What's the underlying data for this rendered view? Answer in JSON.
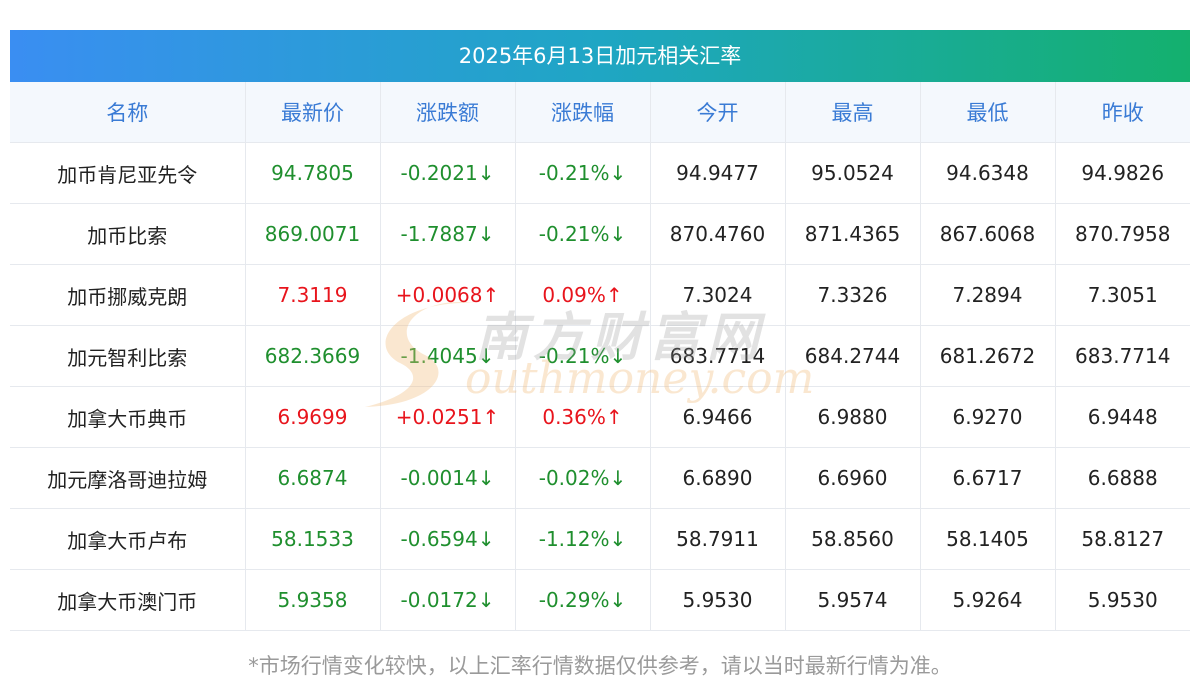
{
  "title": "2025年6月13日加元相关汇率",
  "columns": [
    "名称",
    "最新价",
    "涨跌额",
    "涨跌幅",
    "今开",
    "最高",
    "最低",
    "昨收"
  ],
  "rows": [
    {
      "name": "加币肯尼亚先令",
      "latest": "94.7805",
      "change": "-0.2021↓",
      "pct": "-0.21%↓",
      "open": "94.9477",
      "high": "95.0524",
      "low": "94.6348",
      "prev": "94.9826",
      "trend": "down"
    },
    {
      "name": "加币比索",
      "latest": "869.0071",
      "change": "-1.7887↓",
      "pct": "-0.21%↓",
      "open": "870.4760",
      "high": "871.4365",
      "low": "867.6068",
      "prev": "870.7958",
      "trend": "down"
    },
    {
      "name": "加币挪威克朗",
      "latest": "7.3119",
      "change": "+0.0068↑",
      "pct": "0.09%↑",
      "open": "7.3024",
      "high": "7.3326",
      "low": "7.2894",
      "prev": "7.3051",
      "trend": "up"
    },
    {
      "name": "加元智利比索",
      "latest": "682.3669",
      "change": "-1.4045↓",
      "pct": "-0.21%↓",
      "open": "683.7714",
      "high": "684.2744",
      "low": "681.2672",
      "prev": "683.7714",
      "trend": "down"
    },
    {
      "name": "加拿大币典币",
      "latest": "6.9699",
      "change": "+0.0251↑",
      "pct": "0.36%↑",
      "open": "6.9466",
      "high": "6.9880",
      "low": "6.9270",
      "prev": "6.9448",
      "trend": "up"
    },
    {
      "name": "加元摩洛哥迪拉姆",
      "latest": "6.6874",
      "change": "-0.0014↓",
      "pct": "-0.02%↓",
      "open": "6.6890",
      "high": "6.6960",
      "low": "6.6717",
      "prev": "6.6888",
      "trend": "down"
    },
    {
      "name": "加拿大币卢布",
      "latest": "58.1533",
      "change": "-0.6594↓",
      "pct": "-1.12%↓",
      "open": "58.7911",
      "high": "58.8560",
      "low": "58.1405",
      "prev": "58.8127",
      "trend": "down"
    },
    {
      "name": "加拿大币澳门币",
      "latest": "5.9358",
      "change": "-0.0172↓",
      "pct": "-0.29%↓",
      "open": "5.9530",
      "high": "5.9574",
      "low": "5.9264",
      "prev": "5.9530",
      "trend": "down"
    }
  ],
  "note": "*市场行情变化较快，以上汇率行情数据仅供参考，请以当时最新行情为准。",
  "watermark": {
    "cn": "南方财富网",
    "en": "outhmoney.com"
  },
  "colors": {
    "up": "#e8141c",
    "down": "#1f8f2e",
    "header_text": "#3a7bd5",
    "title_gradient": [
      "#3a8ef2",
      "#14b06e"
    ]
  }
}
